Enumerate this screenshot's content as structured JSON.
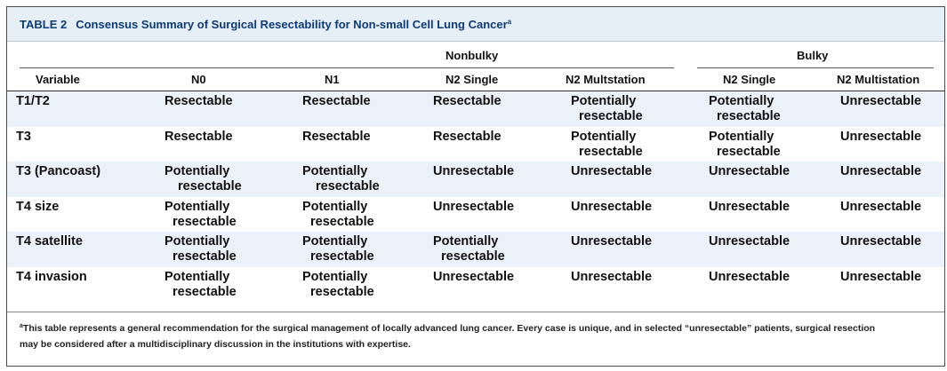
{
  "table": {
    "number": "TABLE 2",
    "title": "Consensus Summary of Surgical Resectability for Non-small Cell Lung Cancer",
    "title_note_mark": "a",
    "title_color": "#0b3b78",
    "header_bg": "#e6eef6",
    "stripe_bg": "#ebf1f8"
  },
  "groups": {
    "nonbulky": "Nonbulky",
    "bulky": "Bulky"
  },
  "columns": [
    "Variable",
    "N0",
    "N1",
    "N2 Single",
    "N2 Multstation",
    "N2 Single",
    "N2 Multistation"
  ],
  "rows": [
    {
      "label": "T1/T2",
      "cells": [
        [
          "Resectable"
        ],
        [
          "Resectable"
        ],
        [
          "Resectable"
        ],
        [
          "Potentially",
          "resectable"
        ],
        [
          "Potentially",
          "resectable"
        ],
        [
          "Unresectable"
        ]
      ]
    },
    {
      "label": "T3",
      "cells": [
        [
          "Resectable"
        ],
        [
          "Resectable"
        ],
        [
          "Resectable"
        ],
        [
          "Potentially",
          "resectable"
        ],
        [
          "Potentially",
          "resectable"
        ],
        [
          "Unresectable"
        ]
      ]
    },
    {
      "label": "T3 (Pancoast)",
      "cells": [
        [
          "Potentially",
          "resectable"
        ],
        [
          "Potentially",
          "resectable"
        ],
        [
          "Unresectable"
        ],
        [
          "Unresectable"
        ],
        [
          "Unresectable"
        ],
        [
          "Unresectable"
        ]
      ]
    },
    {
      "label": "T4 size",
      "cells": [
        [
          "Potentially",
          "resectable"
        ],
        [
          "Potentially",
          "resectable"
        ],
        [
          "Unresectable"
        ],
        [
          "Unresectable"
        ],
        [
          "Unresectable"
        ],
        [
          "Unresectable"
        ]
      ]
    },
    {
      "label": "T4 satellite",
      "cells": [
        [
          "Potentially",
          "resectable"
        ],
        [
          "Potentially",
          "resectable"
        ],
        [
          "Potentially",
          "resectable"
        ],
        [
          "Unresectable"
        ],
        [
          "Unresectable"
        ],
        [
          "Unresectable"
        ]
      ]
    },
    {
      "label": "T4 invasion",
      "cells": [
        [
          "Potentially",
          "resectable"
        ],
        [
          "Potentially",
          "resectable"
        ],
        [
          "Unresectable"
        ],
        [
          "Unresectable"
        ],
        [
          "Unresectable"
        ],
        [
          "Unresectable"
        ]
      ]
    }
  ],
  "footnote": {
    "mark": "a",
    "line1": "This table represents a general recommendation for the surgical management of locally advanced lung cancer. Every case is unique, and in selected “unresectable” patients, surgical resection",
    "line2": "may be considered after a multidisciplinary discussion in the institutions with expertise."
  }
}
